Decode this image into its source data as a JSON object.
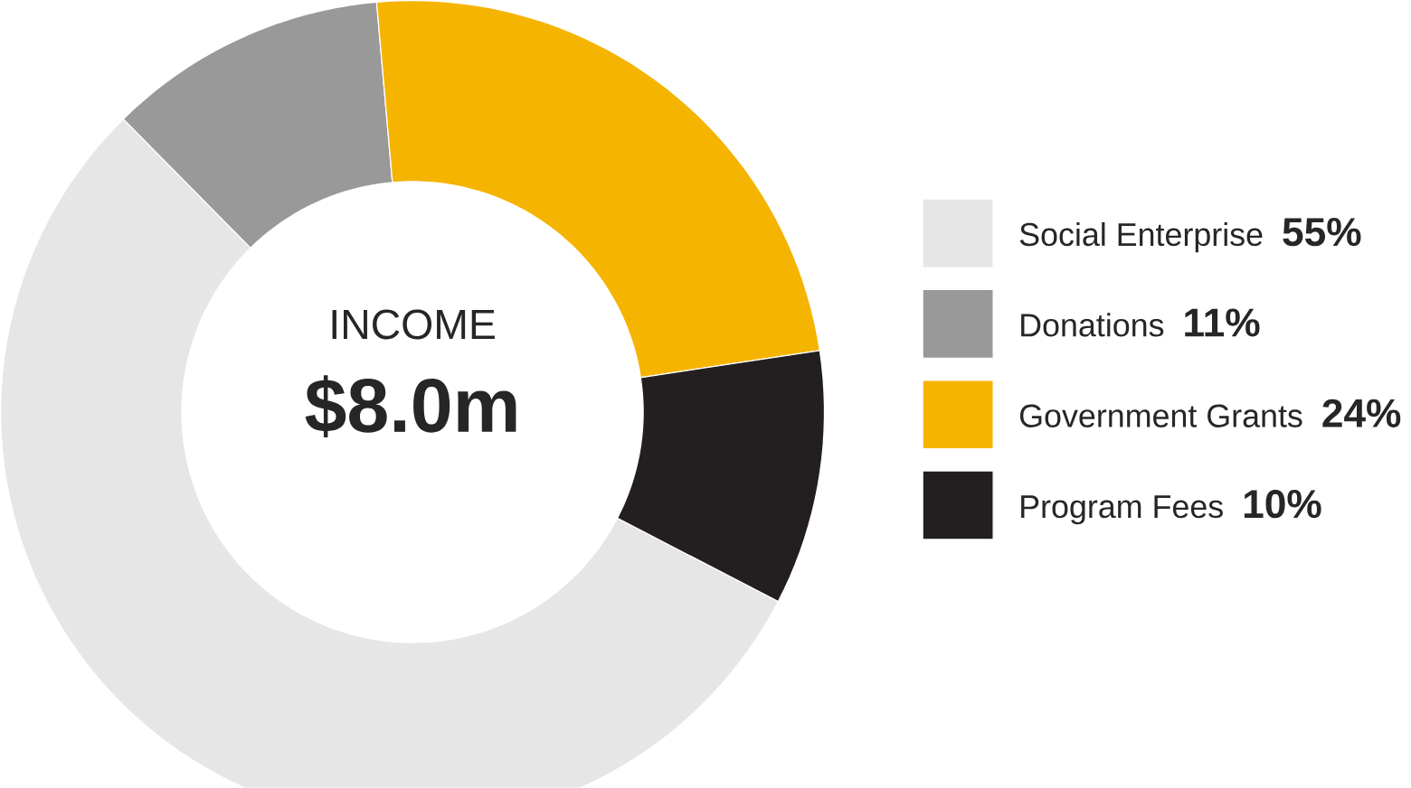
{
  "chart_data": {
    "type": "donut",
    "categories": [
      "Social Enterprise",
      "Donations",
      "Government Grants",
      "Program Fees"
    ],
    "values": [
      55,
      11,
      24,
      10
    ],
    "value_labels": [
      "55%",
      "11%",
      "24%",
      "10%"
    ],
    "colors": [
      "#e6e6e6",
      "#999999",
      "#f5b400",
      "#231f20"
    ],
    "annotations": [
      "INCOME",
      "$8.0m"
    ],
    "legend": "right"
  }
}
